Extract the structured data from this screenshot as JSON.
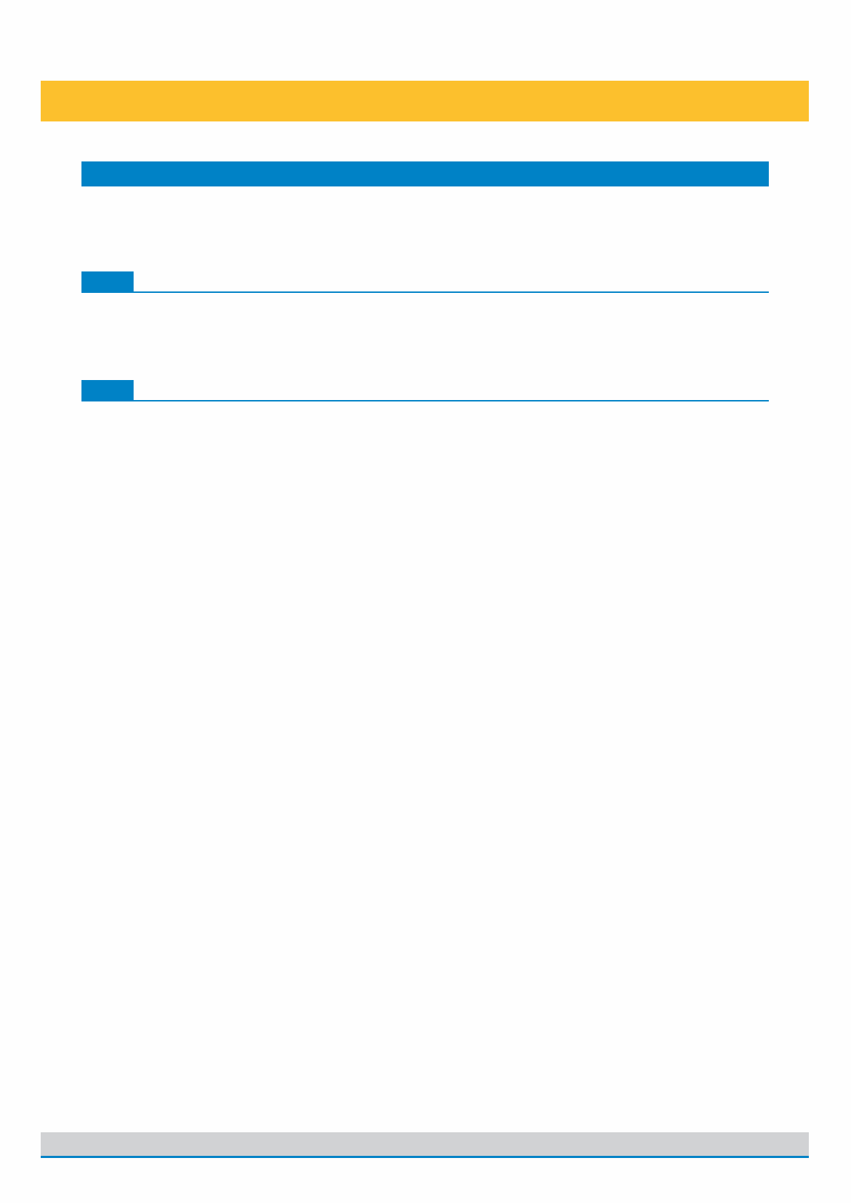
{
  "colors": {
    "header_band": "#FCC02D",
    "accent": "#0082C6",
    "footer_band": "#D1D2D4"
  },
  "sections": [
    {},
    {}
  ]
}
